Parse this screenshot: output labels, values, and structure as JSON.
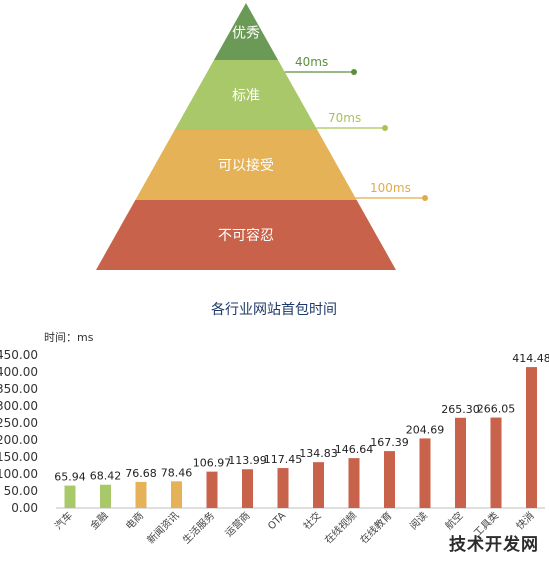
{
  "pyramid": {
    "levels": [
      {
        "label": "优秀",
        "color": "#6b9a57"
      },
      {
        "label": "标准",
        "color": "#a9c86a"
      },
      {
        "label": "可以接受",
        "color": "#e5b257"
      },
      {
        "label": "不可容忍",
        "color": "#c9624a"
      }
    ],
    "thresholds": [
      {
        "label": "40ms",
        "color": "#5e8f40"
      },
      {
        "label": "70ms",
        "color": "#a8c457"
      },
      {
        "label": "100ms",
        "color": "#e1ac48"
      }
    ]
  },
  "chart_data": {
    "type": "bar",
    "title": "各行业网站首包时间",
    "ylabel": "时间：ms",
    "xlabel": "",
    "ylim": [
      0,
      450
    ],
    "yticks": [
      "0.00",
      "50.00",
      "100.00",
      "150.00",
      "200.00",
      "250.00",
      "300.00",
      "350.00",
      "400.00",
      "450.00"
    ],
    "ytick_values": [
      0,
      50,
      100,
      150,
      200,
      250,
      300,
      350,
      400,
      450
    ],
    "categories": [
      "汽车",
      "金融",
      "电商",
      "新闻资讯",
      "生活服务",
      "运营商",
      "OTA",
      "社交",
      "在线视频",
      "在线教育",
      "阅读",
      "航空",
      "工具类",
      "快消"
    ],
    "values": [
      65.94,
      68.42,
      76.68,
      78.46,
      106.97,
      113.99,
      117.45,
      134.83,
      146.64,
      167.39,
      204.69,
      265.3,
      266.05,
      414.48
    ],
    "value_labels": [
      "65.94",
      "68.42",
      "76.68",
      "78.46",
      "106.97",
      "113.99",
      "117.45",
      "134.83",
      "146.64",
      "167.39",
      "204.69",
      "265.30",
      "266.05",
      "414.48"
    ],
    "bar_colors": [
      "#a9c86a",
      "#a9c86a",
      "#e5b257",
      "#e5b257",
      "#c9624a",
      "#c9624a",
      "#c9624a",
      "#c9624a",
      "#c9624a",
      "#c9624a",
      "#c9624a",
      "#c9624a",
      "#c9624a",
      "#c9624a"
    ],
    "grid": false,
    "legend": "none"
  },
  "watermark": "技术开发网"
}
